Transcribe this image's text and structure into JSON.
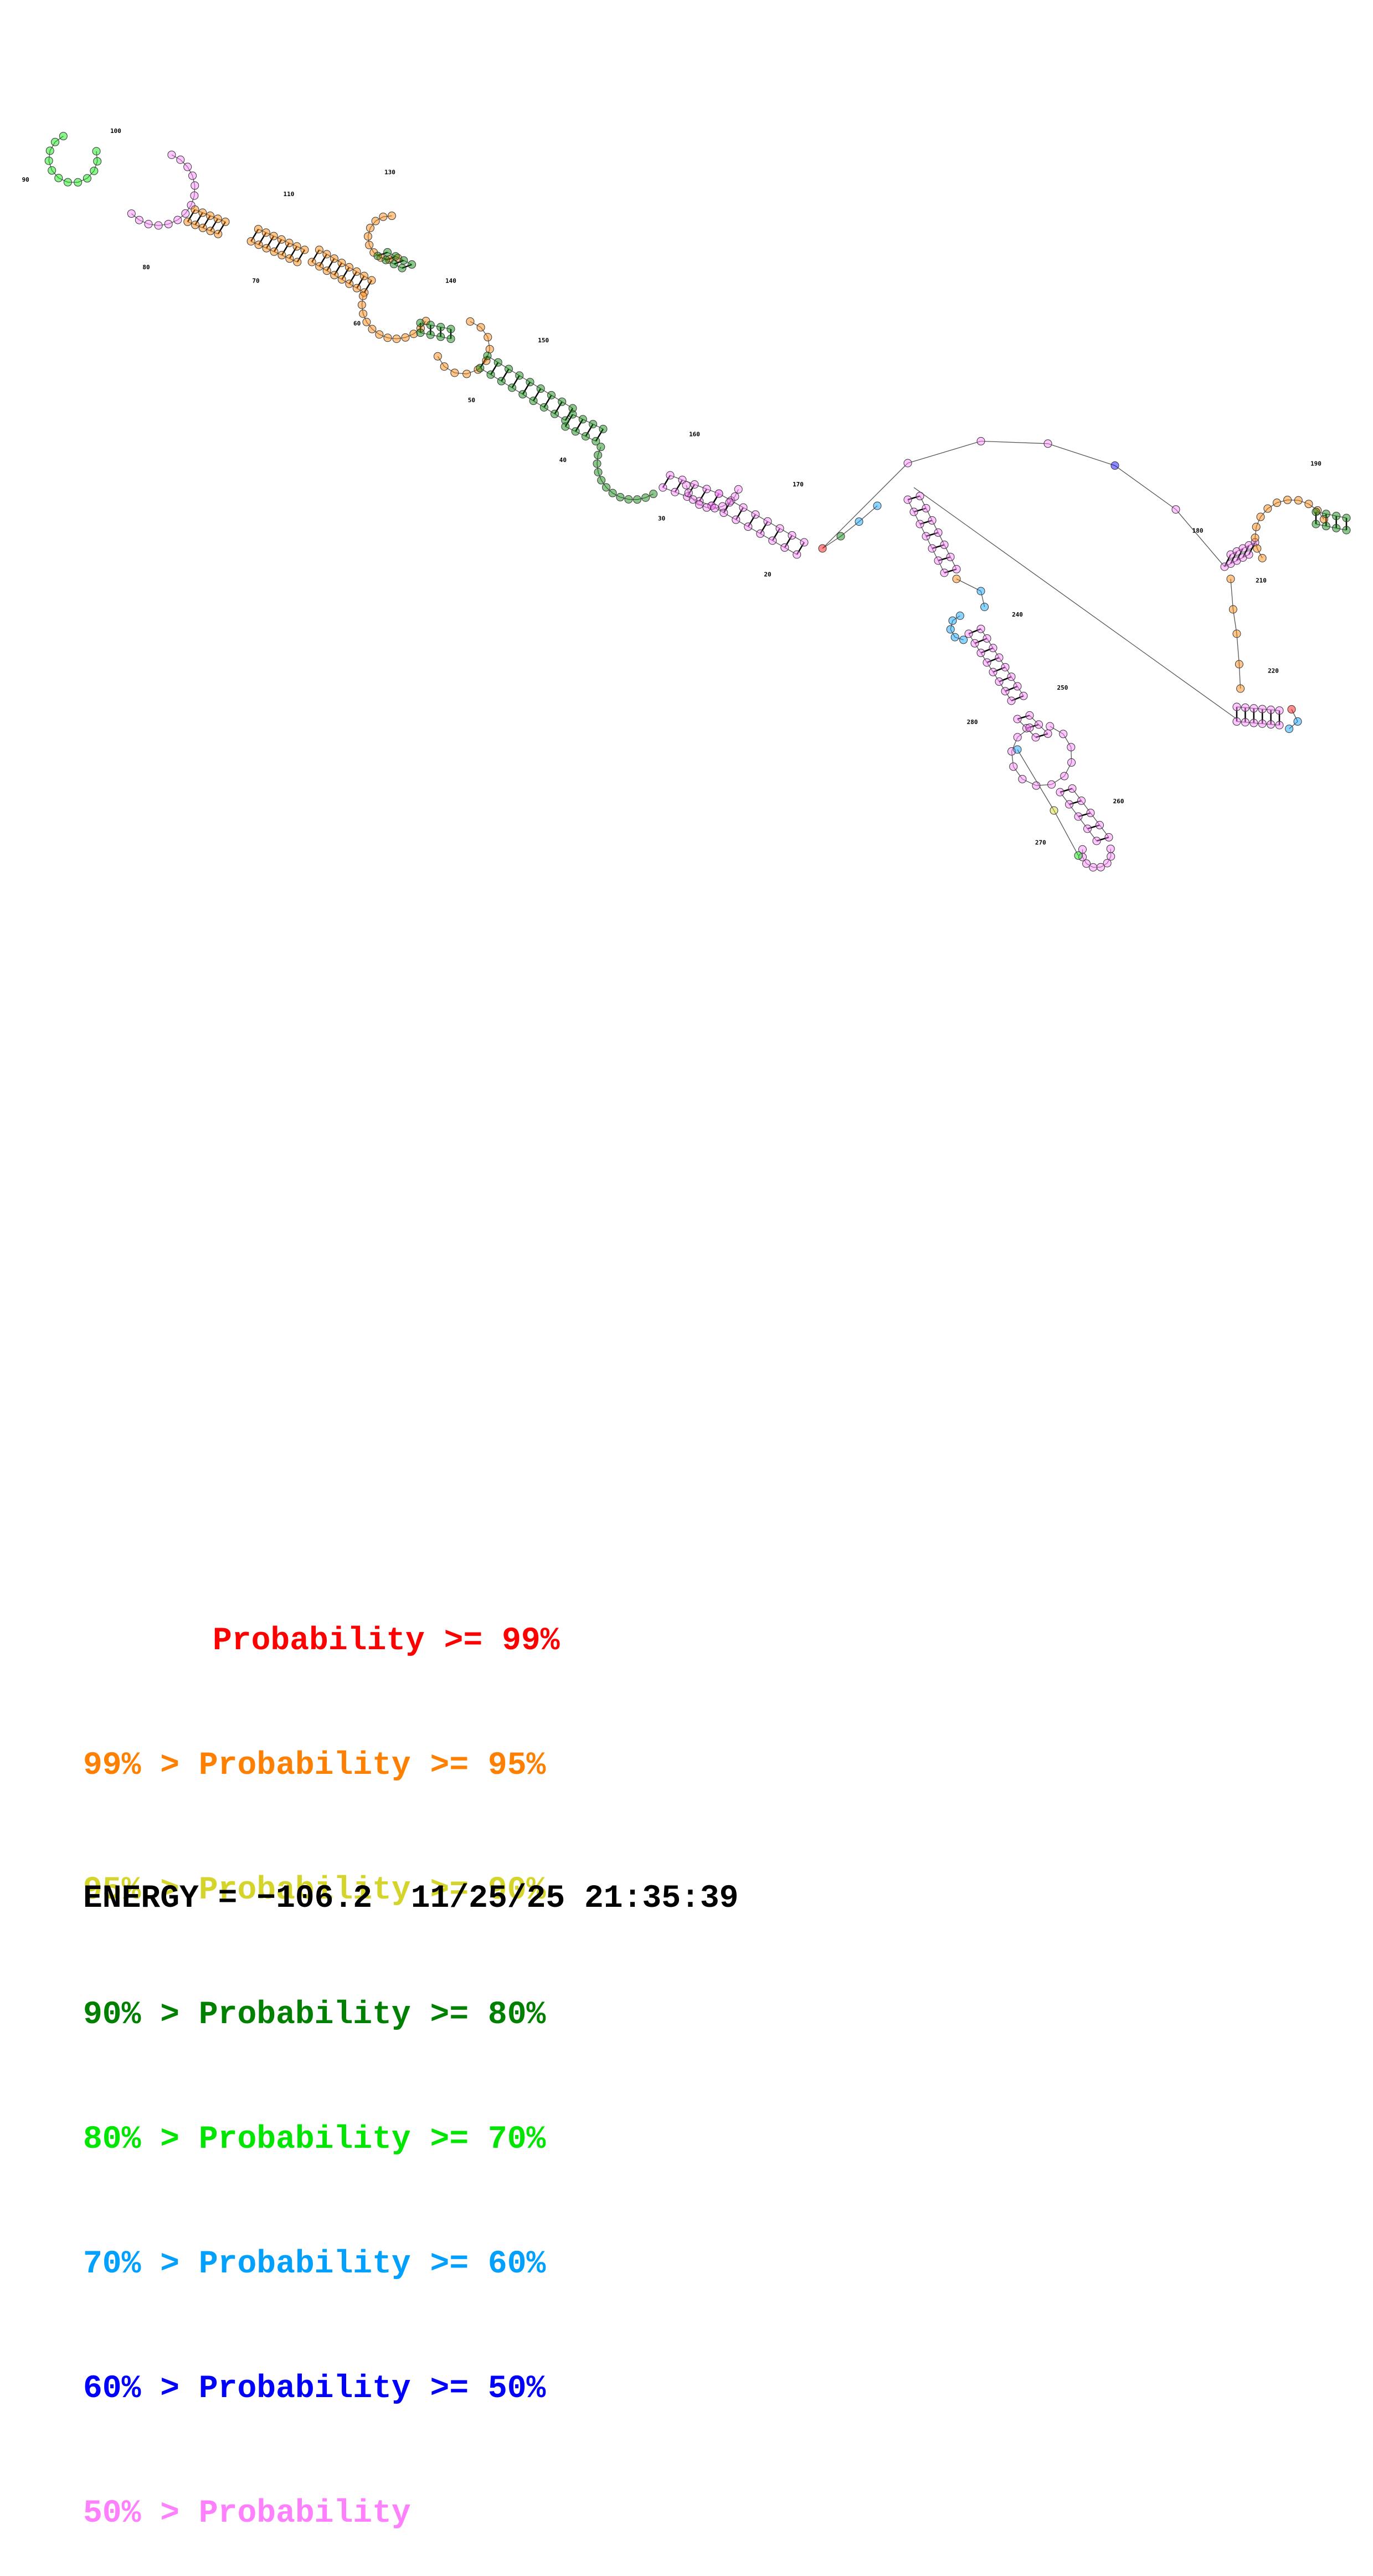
{
  "colors": {
    "p99": "#ff0000",
    "p95": "#ff8000",
    "p90": "#d4d42a",
    "p80": "#008000",
    "p70": "#00e600",
    "p60": "#00a0ff",
    "p50": "#0000ff",
    "plt50": "#ff80ff",
    "line": "#555555"
  },
  "legend": [
    {
      "prefix": "",
      "label": "Probability >= 99%",
      "color": "#ff0000"
    },
    {
      "prefix": "99% > ",
      "label": "Probability >= 95%",
      "color": "#ff8000"
    },
    {
      "prefix": "95% > ",
      "label": "Probability >= 90%",
      "color": "#d4d42a"
    },
    {
      "prefix": "90% > ",
      "label": "Probability >= 80%",
      "color": "#008000"
    },
    {
      "prefix": "80% > ",
      "label": "Probability >= 70%",
      "color": "#00e600"
    },
    {
      "prefix": "70% > ",
      "label": "Probability >= 60%",
      "color": "#00a0ff"
    },
    {
      "prefix": "60% > ",
      "label": "Probability >= 50%",
      "color": "#0000ff"
    },
    {
      "prefix": "50% > ",
      "label": "Probability",
      "color": "#ff80ff"
    }
  ],
  "energy": {
    "label": "ENERGY =",
    "value": "−106.2",
    "timestamp": "11/25/25 21:35:39"
  },
  "position_labels": [
    "20",
    "30",
    "40",
    "50",
    "60",
    "70",
    "80",
    "90",
    "100",
    "110",
    "130",
    "140",
    "150",
    "160",
    "170",
    "180",
    "190",
    "210",
    "220",
    "240",
    "250",
    "260",
    "270",
    "280"
  ]
}
